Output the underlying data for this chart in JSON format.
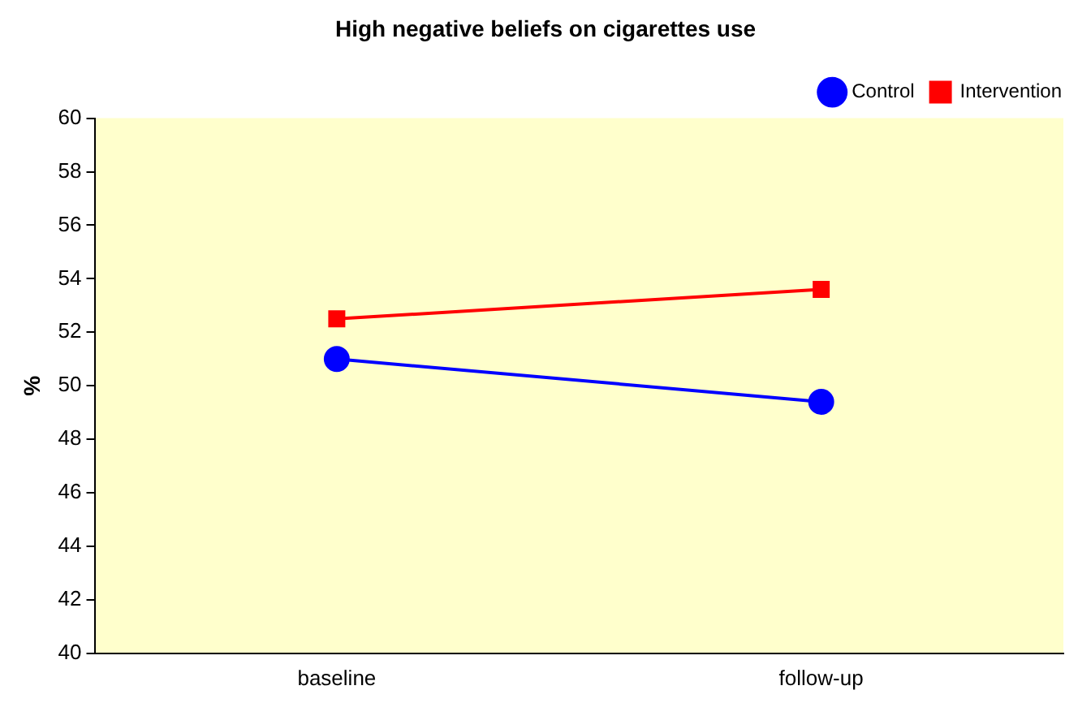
{
  "chart_data": {
    "type": "line",
    "title": "High negative beliefs on cigarettes use",
    "ylabel": "%",
    "categories": [
      "baseline",
      "follow-up"
    ],
    "series": [
      {
        "name": "Control",
        "color": "#0000ff",
        "values": [
          51.0,
          49.4
        ],
        "marker": "circle"
      },
      {
        "name": "Intervention",
        "color": "#ff0000",
        "values": [
          52.5,
          53.6
        ],
        "marker": "square"
      }
    ],
    "ylim": [
      40,
      60
    ],
    "yticks": [
      40,
      42,
      44,
      46,
      48,
      50,
      52,
      54,
      56,
      58,
      60
    ],
    "grid": false,
    "legend": "top right",
    "line_style": "solid"
  }
}
